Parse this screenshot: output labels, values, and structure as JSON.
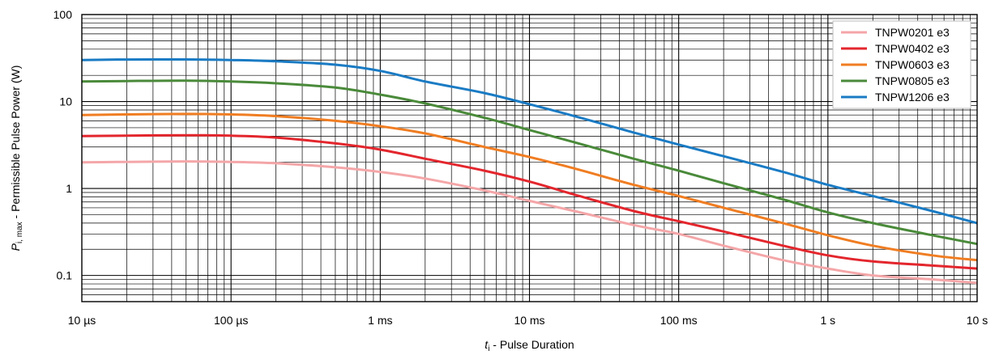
{
  "chart_data": {
    "type": "line",
    "title": "",
    "xlabel": {
      "symbol": "t",
      "subscript": "i",
      "text": " - Pulse Duration"
    },
    "ylabel": {
      "symbol": "P",
      "subscript": "i, max",
      "text": " - Permissible Pulse Power (W)"
    },
    "x_scale": "log",
    "y_scale": "log",
    "xlim": [
      1e-05,
      10
    ],
    "ylim": [
      0.05,
      100
    ],
    "grid": true,
    "legend_position": "top-right",
    "x_tick_labels": [
      {
        "value": 1e-05,
        "label": "10 µs"
      },
      {
        "value": 0.0001,
        "label": "100 µs"
      },
      {
        "value": 0.001,
        "label": "1 ms"
      },
      {
        "value": 0.01,
        "label": "10 ms"
      },
      {
        "value": 0.1,
        "label": "100 ms"
      },
      {
        "value": 1,
        "label": "1 s"
      },
      {
        "value": 10,
        "label": "10 s"
      }
    ],
    "y_tick_labels": [
      {
        "value": 0.1,
        "label": "0.1"
      },
      {
        "value": 1,
        "label": "1"
      },
      {
        "value": 10,
        "label": "10"
      },
      {
        "value": 100,
        "label": "100"
      }
    ],
    "series": [
      {
        "name": "TNPW0201 e3",
        "color": "#f4a6a8",
        "x": [
          1e-05,
          2e-05,
          5e-05,
          0.0001,
          0.0002,
          0.0005,
          0.001,
          0.002,
          0.005,
          0.01,
          0.02,
          0.05,
          0.1,
          0.2,
          0.5,
          1,
          2,
          5,
          10
        ],
        "y": [
          2.0,
          2.02,
          2.05,
          2.02,
          1.95,
          1.75,
          1.55,
          1.3,
          0.95,
          0.72,
          0.55,
          0.38,
          0.3,
          0.22,
          0.15,
          0.12,
          0.1,
          0.09,
          0.082
        ]
      },
      {
        "name": "TNPW0402 e3",
        "color": "#e3262d",
        "x": [
          1e-05,
          2e-05,
          5e-05,
          0.0001,
          0.0002,
          0.0005,
          0.001,
          0.002,
          0.005,
          0.01,
          0.02,
          0.05,
          0.1,
          0.2,
          0.5,
          1,
          2,
          5,
          10
        ],
        "y": [
          4.0,
          4.05,
          4.1,
          4.05,
          3.85,
          3.3,
          2.8,
          2.2,
          1.6,
          1.2,
          0.85,
          0.55,
          0.42,
          0.32,
          0.22,
          0.17,
          0.145,
          0.13,
          0.12
        ]
      },
      {
        "name": "TNPW0603 e3",
        "color": "#f07d22",
        "x": [
          1e-05,
          2e-05,
          5e-05,
          0.0001,
          0.0002,
          0.0005,
          0.001,
          0.002,
          0.005,
          0.01,
          0.02,
          0.05,
          0.1,
          0.2,
          0.5,
          1,
          2,
          5,
          10
        ],
        "y": [
          7.0,
          7.1,
          7.2,
          7.1,
          6.8,
          6.0,
          5.2,
          4.3,
          3.0,
          2.3,
          1.7,
          1.1,
          0.82,
          0.6,
          0.4,
          0.29,
          0.22,
          0.17,
          0.15
        ]
      },
      {
        "name": "TNPW0805 e3",
        "color": "#4a8a3a",
        "x": [
          1e-05,
          2e-05,
          5e-05,
          0.0001,
          0.0002,
          0.0005,
          0.001,
          0.002,
          0.005,
          0.01,
          0.02,
          0.05,
          0.1,
          0.2,
          0.5,
          1,
          2,
          5,
          10
        ],
        "y": [
          17.0,
          17.2,
          17.4,
          17.0,
          16.2,
          14.5,
          12.0,
          9.5,
          6.5,
          4.7,
          3.4,
          2.2,
          1.6,
          1.15,
          0.75,
          0.53,
          0.4,
          0.29,
          0.23
        ]
      },
      {
        "name": "TNPW1206 e3",
        "color": "#1a7bc4",
        "x": [
          1e-05,
          2e-05,
          5e-05,
          0.0001,
          0.0002,
          0.0005,
          0.001,
          0.002,
          0.005,
          0.01,
          0.02,
          0.05,
          0.1,
          0.2,
          0.5,
          1,
          2,
          5,
          10
        ],
        "y": [
          30.0,
          30.4,
          30.5,
          30.0,
          29.0,
          26.5,
          22.5,
          17.0,
          12.5,
          9.3,
          6.8,
          4.4,
          3.2,
          2.35,
          1.55,
          1.1,
          0.82,
          0.55,
          0.4
        ]
      }
    ]
  }
}
